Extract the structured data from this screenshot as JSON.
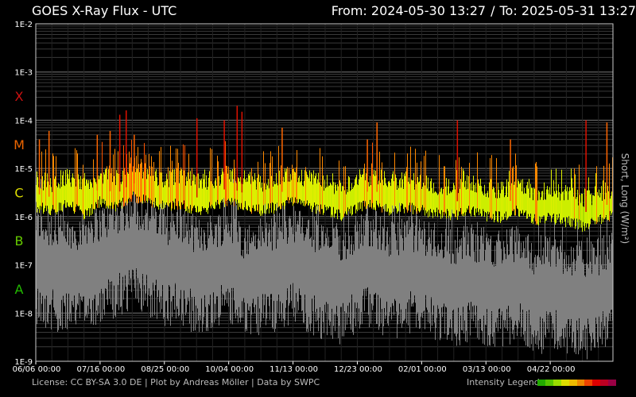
{
  "header": {
    "title": "GOES X-Ray Flux - UTC",
    "from_label": "From:",
    "from_value": "2024-05-30 13:27",
    "separator": "/",
    "to_label": "To:",
    "to_value": "2025-05-31 13:27"
  },
  "footer": {
    "credit": "License: CC BY-SA 3.0 DE | Plot by Andreas Möller | Data by SWPC",
    "legend_label": "Intensity Legend",
    "legend_colors": [
      "#22aa00",
      "#55c400",
      "#99dd00",
      "#dddd00",
      "#eebb00",
      "#ee8800",
      "#ee4400",
      "#dd0000",
      "#bb0022",
      "#990044"
    ]
  },
  "chart_data": {
    "type": "line",
    "title": "GOES X-Ray Flux - UTC",
    "ylabel": "Short, Long (W/m²)",
    "yscale": "log",
    "ylim": [
      1e-09,
      0.01
    ],
    "ytick_labels": [
      "1E-2",
      "1E-3",
      "1E-4",
      "1E-5",
      "1E-6",
      "1E-7",
      "1E-8",
      "1E-9"
    ],
    "ytick_values": [
      0.01,
      0.001,
      0.0001,
      1e-05,
      1e-06,
      1e-07,
      1e-08,
      1e-09
    ],
    "xlim": [
      "2024-06-06",
      "2025-05-31"
    ],
    "xtick_labels": [
      "06/06 00:00",
      "07/16 00:00",
      "08/25 00:00",
      "10/04 00:00",
      "11/13 00:00",
      "12/23 00:00",
      "02/01 00:00",
      "03/13 00:00",
      "04/22 00:00"
    ],
    "xtick_days": [
      0,
      40,
      80,
      120,
      160,
      200,
      240,
      280,
      320
    ],
    "flare_classes": [
      {
        "label": "X",
        "value": 0.000316,
        "color": "#cc1111"
      },
      {
        "label": "M",
        "value": 3.16e-05,
        "color": "#ee6600"
      },
      {
        "label": "C",
        "value": 3.16e-06,
        "color": "#dddd00"
      },
      {
        "label": "B",
        "value": 3.16e-07,
        "color": "#66cc00"
      },
      {
        "label": "A",
        "value": 3.16e-08,
        "color": "#22bb00"
      }
    ],
    "grid": true,
    "series": [
      {
        "name": "Long",
        "color_scale": "intensity",
        "x": [
          "2024-06-06",
          "2024-06-16",
          "2024-06-26",
          "2024-07-06",
          "2024-07-16",
          "2024-07-26",
          "2024-08-05",
          "2024-08-15",
          "2024-08-25",
          "2024-09-04",
          "2024-09-14",
          "2024-09-24",
          "2024-10-04",
          "2024-10-14",
          "2024-10-24",
          "2024-11-03",
          "2024-11-13",
          "2024-11-23",
          "2024-12-03",
          "2024-12-13",
          "2024-12-23",
          "2025-01-02",
          "2025-01-12",
          "2025-01-22",
          "2025-02-01",
          "2025-02-11",
          "2025-02-21",
          "2025-03-03",
          "2025-03-13",
          "2025-03-23",
          "2025-04-02",
          "2025-04-12",
          "2025-04-22",
          "2025-05-02",
          "2025-05-12",
          "2025-05-22",
          "2025-05-31"
        ],
        "y": [
          3e-06,
          2.5e-06,
          3.5e-06,
          2e-06,
          4e-06,
          3e-06,
          5e-06,
          4e-06,
          3e-06,
          3.5e-06,
          2.5e-06,
          3e-06,
          4e-06,
          3e-06,
          2.5e-06,
          3e-06,
          4e-06,
          3e-06,
          2.5e-06,
          2e-06,
          3e-06,
          3.5e-06,
          2.5e-06,
          3e-06,
          2.5e-06,
          2.2e-06,
          2e-06,
          2.5e-06,
          2e-06,
          1.8e-06,
          2.5e-06,
          1.6e-06,
          1.8e-06,
          1.5e-06,
          1.2e-06,
          1.5e-06,
          2e-06
        ],
        "peaks": [
          {
            "x": "2024-06-08",
            "y": 4e-05
          },
          {
            "x": "2024-06-14",
            "y": 6e-05
          },
          {
            "x": "2024-07-14",
            "y": 5e-05
          },
          {
            "x": "2024-07-22",
            "y": 6e-05
          },
          {
            "x": "2024-07-28",
            "y": 0.00013
          },
          {
            "x": "2024-08-01",
            "y": 0.00016
          },
          {
            "x": "2024-08-06",
            "y": 5e-05
          },
          {
            "x": "2024-09-14",
            "y": 0.00011
          },
          {
            "x": "2024-10-01",
            "y": 0.0001
          },
          {
            "x": "2024-10-09",
            "y": 0.0002
          },
          {
            "x": "2024-10-12",
            "y": 0.00015
          },
          {
            "x": "2024-11-06",
            "y": 7e-05
          },
          {
            "x": "2024-12-29",
            "y": 4e-05
          },
          {
            "x": "2025-01-04",
            "y": 9e-05
          },
          {
            "x": "2025-02-23",
            "y": 0.0001
          },
          {
            "x": "2025-03-28",
            "y": 4e-05
          },
          {
            "x": "2025-05-14",
            "y": 0.0001
          },
          {
            "x": "2025-05-27",
            "y": 9e-05
          }
        ]
      },
      {
        "name": "Short",
        "color": "#808080",
        "x": [
          "2024-06-06",
          "2024-06-16",
          "2024-06-26",
          "2024-07-06",
          "2024-07-16",
          "2024-07-26",
          "2024-08-05",
          "2024-08-15",
          "2024-08-25",
          "2024-09-04",
          "2024-09-14",
          "2024-09-24",
          "2024-10-04",
          "2024-10-14",
          "2024-10-24",
          "2024-11-03",
          "2024-11-13",
          "2024-11-23",
          "2024-12-03",
          "2024-12-13",
          "2024-12-23",
          "2025-01-02",
          "2025-01-12",
          "2025-01-22",
          "2025-02-01",
          "2025-02-11",
          "2025-02-21",
          "2025-03-03",
          "2025-03-13",
          "2025-03-23",
          "2025-04-02",
          "2025-04-12",
          "2025-04-22",
          "2025-05-02",
          "2025-05-12",
          "2025-05-22",
          "2025-05-31"
        ],
        "y": [
          1.5e-07,
          1e-07,
          8e-08,
          1.2e-07,
          1.5e-07,
          2e-07,
          3e-07,
          2e-07,
          1.2e-07,
          1.5e-07,
          8e-08,
          1e-07,
          1.5e-07,
          6e-08,
          8e-08,
          1e-07,
          1.5e-07,
          8e-08,
          6e-08,
          5e-08,
          1e-07,
          1.2e-07,
          6e-08,
          1e-07,
          8e-08,
          6e-08,
          5e-08,
          6e-08,
          5e-08,
          4e-08,
          6e-08,
          3e-08,
          4e-08,
          3e-08,
          2.5e-08,
          3e-08,
          5e-08
        ]
      }
    ]
  }
}
